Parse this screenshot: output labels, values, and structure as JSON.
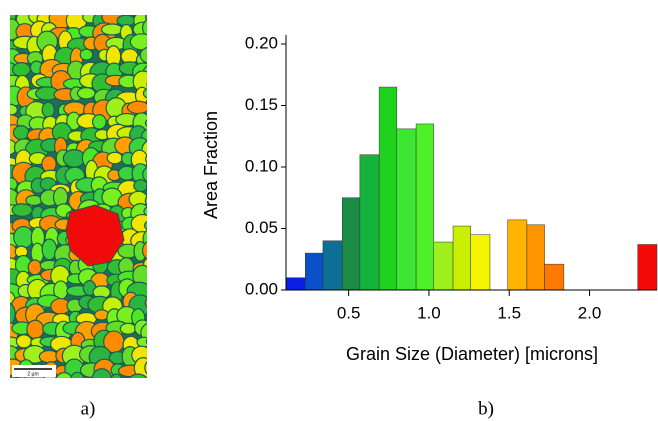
{
  "chart_data": {
    "type": "histogram",
    "xlabel": "Grain Size (Diameter) [microns]",
    "ylabel": "Area Fraction",
    "bins": [
      0.11,
      0.23,
      0.34,
      0.46,
      0.57,
      0.69,
      0.8,
      0.92,
      1.03,
      1.15,
      1.26,
      1.38,
      1.49,
      1.61,
      1.72,
      1.84,
      1.95,
      2.07,
      2.18,
      2.3,
      2.42
    ],
    "values": [
      0.01,
      0.03,
      0.04,
      0.075,
      0.11,
      0.165,
      0.131,
      0.135,
      0.039,
      0.052,
      0.045,
      0,
      0.057,
      0.053,
      0.021,
      0,
      0,
      0,
      0,
      0.037
    ],
    "colors": [
      "#0a1ee6",
      "#0a50c8",
      "#0d6e96",
      "#1a8c46",
      "#14b43c",
      "#1ed21e",
      "#3ce632",
      "#50f028",
      "#a0f01e",
      "#c8f000",
      "#f5f500",
      "#ffc800",
      "#ffb400",
      "#ff9600",
      "#ff7800",
      "#ff6400",
      "#ff5000",
      "#ff3c00",
      "#ff2800",
      "#f50a0a"
    ],
    "xlim": [
      0.11,
      2.42
    ],
    "ylim": [
      0,
      0.2
    ],
    "xticks": [
      0.5,
      {
        "value": 1.0,
        "label": "1.0"
      },
      1.5,
      {
        "value": 2.0,
        "label": "2.0"
      }
    ],
    "yticks": [
      {
        "value": 0,
        "label": "0.00"
      },
      {
        "value": 0.05,
        "label": "0.05"
      },
      {
        "value": 0.1,
        "label": "0.10"
      },
      {
        "value": 0.15,
        "label": "0.15"
      },
      {
        "value": 0.2,
        "label": "0.20"
      }
    ]
  },
  "micrograph": {
    "scale_bar": "2 µm"
  },
  "panel_labels": [
    "a)",
    "b)"
  ]
}
